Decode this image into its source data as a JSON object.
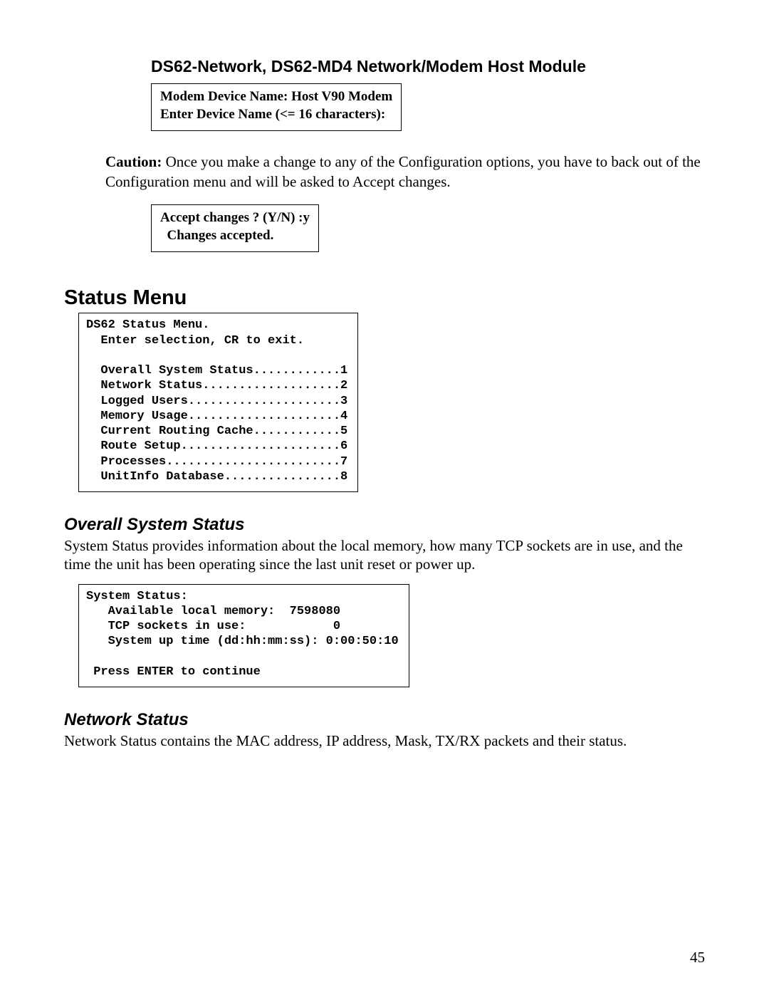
{
  "header": {
    "title": "DS62-Network, DS62-MD4 Network/Modem Host Module"
  },
  "device_box": {
    "line1": "Modem Device Name: Host V90 Modem",
    "line2": "Enter Device Name (<= 16 characters):"
  },
  "caution": {
    "label": "Caution:",
    "text": " Once you make a change to any of the Configuration options, you have to back out of the Configuration menu and will be asked to Accept changes."
  },
  "accept_box": {
    "line1": "Accept changes ? (Y/N) :y",
    "line2": "  Changes accepted."
  },
  "status_menu": {
    "heading": "Status Menu",
    "code": "DS62 Status Menu.\n  Enter selection, CR to exit.\n\n  Overall System Status............1\n  Network Status...................2\n  Logged Users.....................3\n  Memory Usage.....................4\n  Current Routing Cache............5\n  Route Setup......................6\n  Processes........................7\n  UnitInfo Database................8"
  },
  "overall_status": {
    "heading": "Overall System Status",
    "para": "System Status provides information about the local memory, how many TCP sockets are in use, and the time the unit has been operating since the last unit reset or power up.",
    "code": "System Status:\n   Available local memory:  7598080\n   TCP sockets in use:            0\n   System up time (dd:hh:mm:ss): 0:00:50:10\n\n Press ENTER to continue"
  },
  "network_status": {
    "heading": "Network Status",
    "para": "Network Status contains the MAC address, IP address, Mask, TX/RX packets and their status."
  },
  "page": {
    "number": "45"
  },
  "style": {
    "page_bg": "#ffffff",
    "text_color": "#000000",
    "border_color": "#000000",
    "body_font": "Times New Roman",
    "heading_font": "Arial",
    "code_font": "Courier New",
    "header_title_size_pt": 17,
    "section_h1_size_pt": 22,
    "section_h2_size_pt": 18,
    "body_size_pt": 16,
    "box_text_size_pt": 14,
    "code_size_pt": 13
  }
}
